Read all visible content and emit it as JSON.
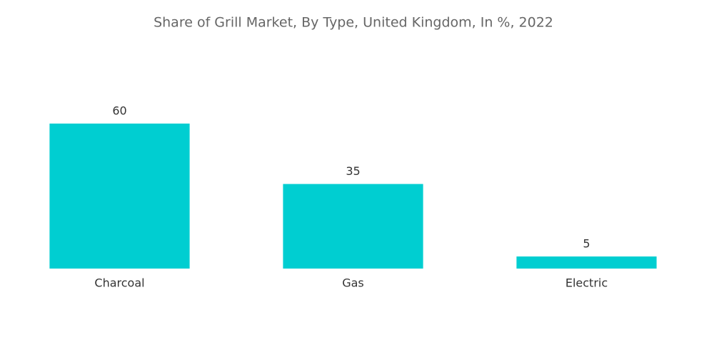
{
  "chart_data": {
    "type": "bar",
    "title": "Share of Grill Market, By Type, United Kingdom, In %, 2022",
    "categories": [
      "Charcoal",
      "Gas",
      "Electric"
    ],
    "values": [
      60,
      35,
      5
    ],
    "color": "#00ced1"
  }
}
